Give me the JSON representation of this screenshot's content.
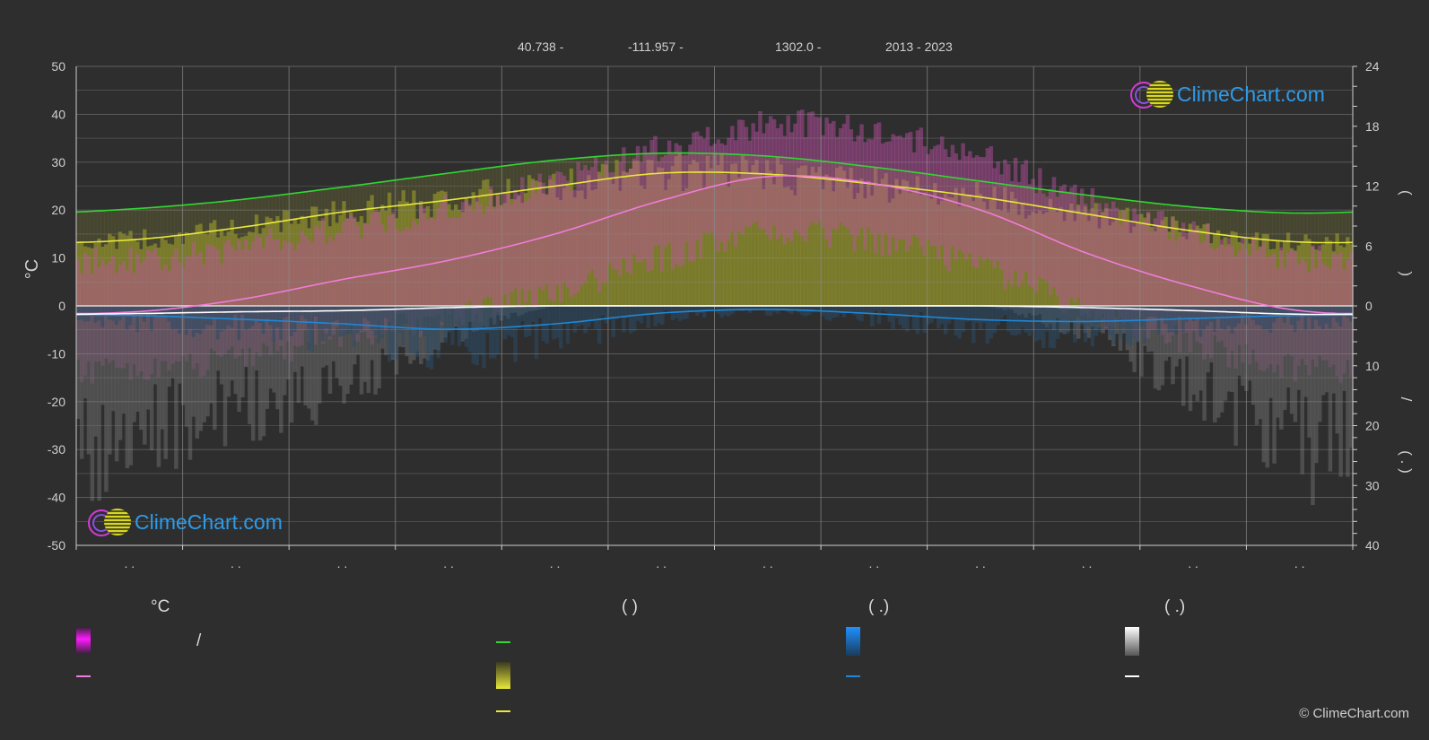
{
  "header": {
    "lat": "40.738 -",
    "lon": "-111.957 -",
    "elev": "1302.0 -",
    "years": "2013 - 2023"
  },
  "left_axis_unit": "°C",
  "right_axis_upper_text": "(    )",
  "right_axis_lower_text": "/",
  "right_axis_lower_text2": "(  .  )",
  "month_tick_label": ". .",
  "legend": {
    "col1_title": "°C",
    "col1_row1": "/",
    "col2_title": "(           )",
    "col3_title": "(   .)",
    "col4_title": "(   .)"
  },
  "logo_text": "ClimeChart.com",
  "copyright": "© ClimeChart.com",
  "colors": {
    "background": "#2e2e2e",
    "daylight": "#33d633",
    "sunshine": "#e8e83a",
    "temp_mean": "#f07cd8",
    "temp_range": "#d218d2",
    "rain": "#1e88d8",
    "snow": "#ffffff",
    "grid": "#8a8a8a"
  },
  "chart_data": {
    "type": "line",
    "title": "",
    "xlabel": "",
    "ylabel": "°C",
    "ylim": [
      -50,
      50
    ],
    "y2_upper_lim": [
      0,
      24
    ],
    "y2_lower_lim": [
      0,
      40
    ],
    "y_ticks": [
      50,
      40,
      30,
      20,
      10,
      0,
      -10,
      -20,
      -30,
      -40,
      -50
    ],
    "y2_upper_ticks": [
      24,
      18,
      12,
      6,
      0
    ],
    "y2_lower_ticks": [
      10,
      20,
      30,
      40
    ],
    "months": 12,
    "grid": true,
    "series": [
      {
        "key": "daylight",
        "axis": "hours",
        "values": [
          9.7,
          10.6,
          11.9,
          13.3,
          14.6,
          15.3,
          15.0,
          13.9,
          12.5,
          11.1,
          9.9,
          9.3
        ]
      },
      {
        "key": "sunshine",
        "axis": "hours",
        "values": [
          6.6,
          7.8,
          9.4,
          10.6,
          12.0,
          13.3,
          13.2,
          12.2,
          10.9,
          9.2,
          7.5,
          6.4
        ]
      },
      {
        "key": "temp_mean",
        "axis": "celsius",
        "values": [
          -1.3,
          1.2,
          5.5,
          9.5,
          15.0,
          22.0,
          27.0,
          25.5,
          20.0,
          11.0,
          4.0,
          -1.0
        ]
      },
      {
        "key": "rain",
        "axis": "mm_daily",
        "values": [
          1.6,
          2.2,
          3.0,
          3.9,
          3.0,
          1.2,
          0.6,
          1.3,
          2.3,
          2.6,
          2.1,
          1.6
        ]
      },
      {
        "key": "snow",
        "axis": "mm_daily",
        "values": [
          1.3,
          1.0,
          0.8,
          0.3,
          0.0,
          0.0,
          0.0,
          0.0,
          0.0,
          0.3,
          0.8,
          1.4
        ]
      }
    ]
  }
}
